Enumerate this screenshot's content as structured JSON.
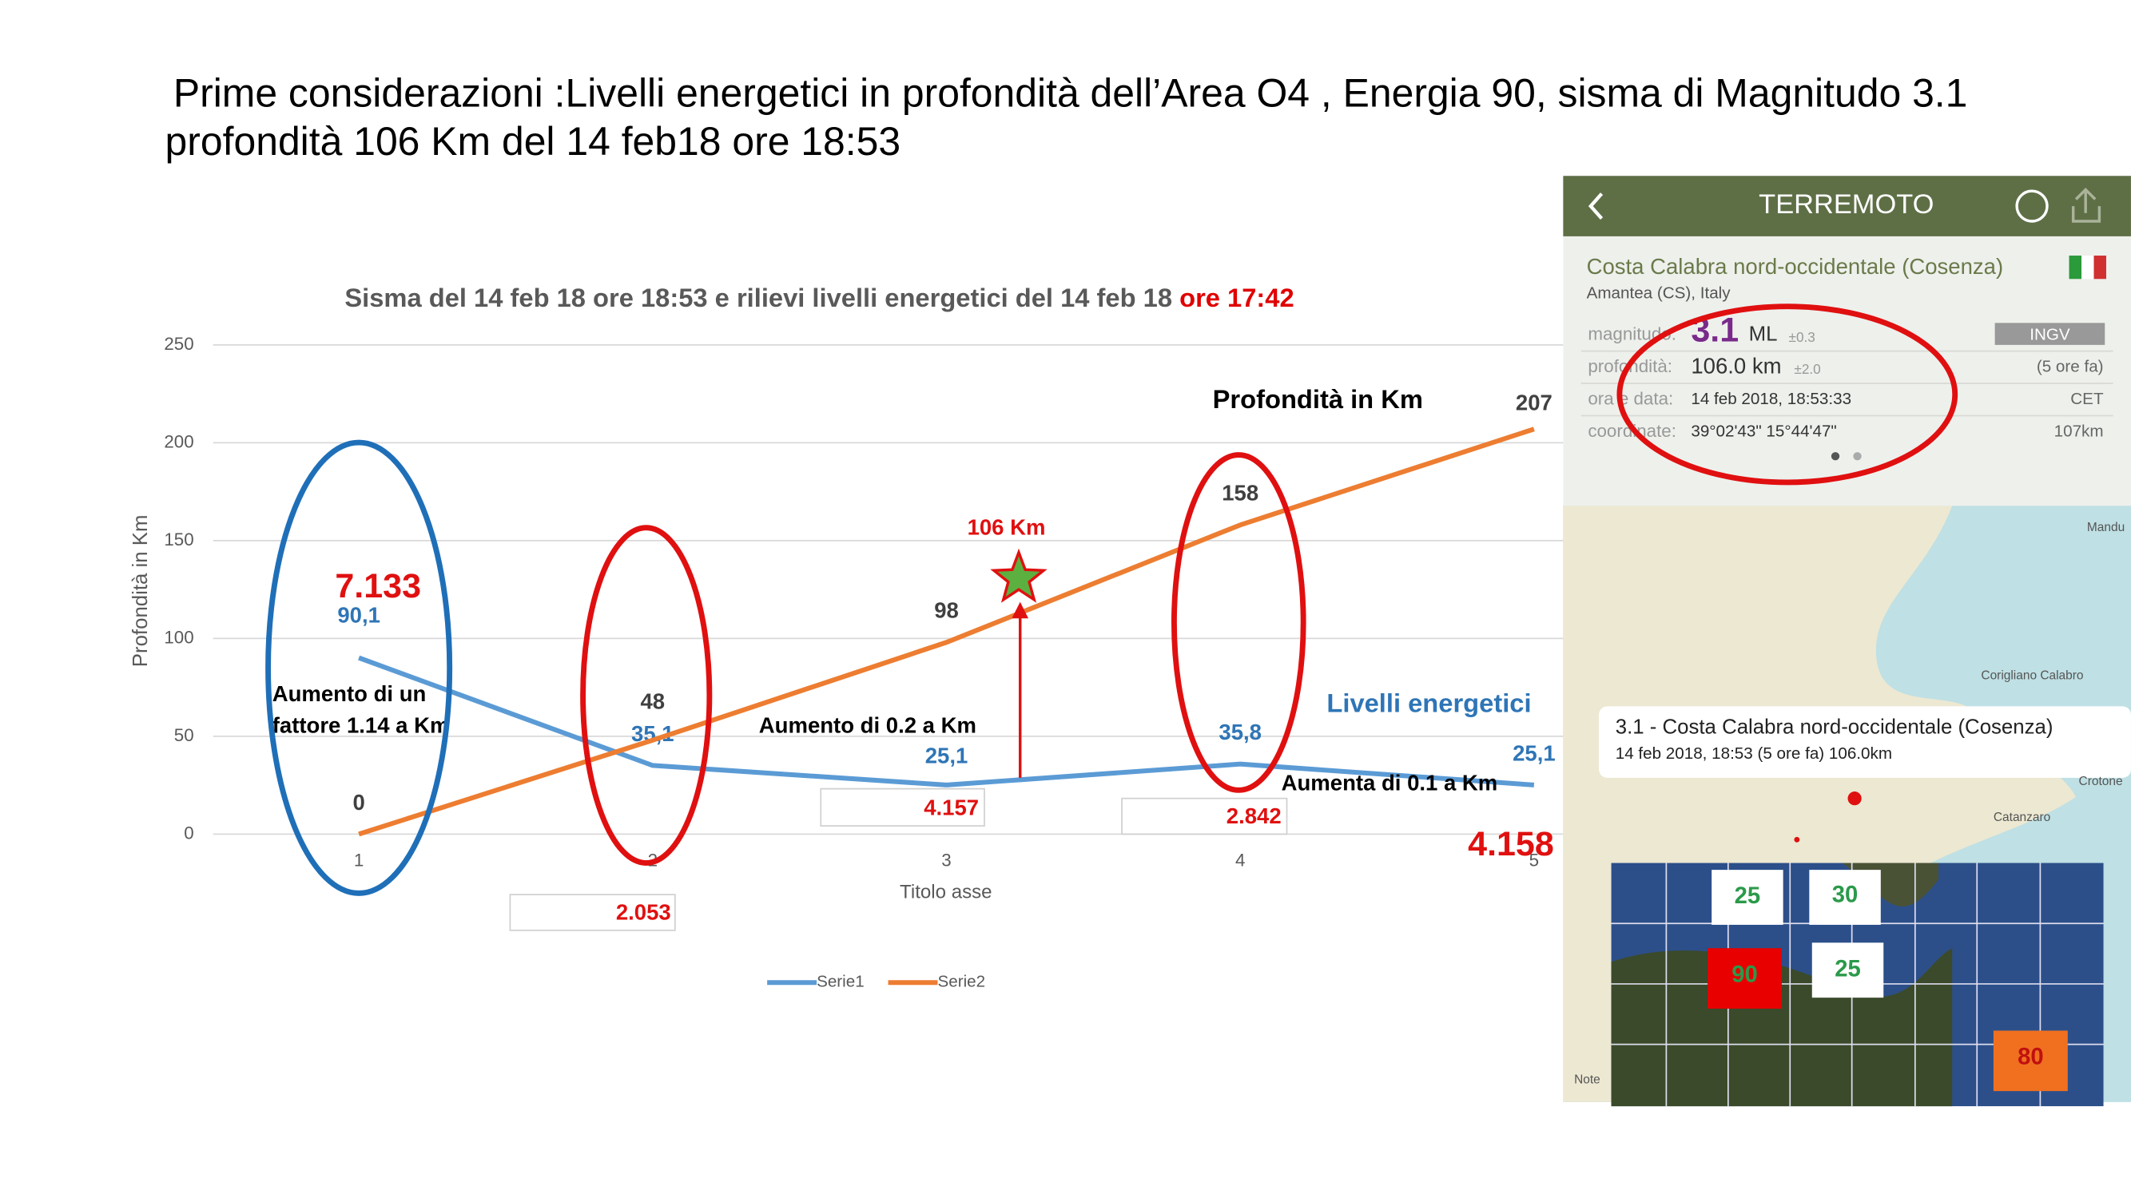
{
  "title_lines": [
    " Prime considerazioni :Livelli energetici in profondità dell’Area O4 , Energia 90, sisma di Magnitudo 3.1",
    "profondità 106 Km del 14 feb18 ore 18:53"
  ],
  "chart_data": {
    "type": "line",
    "title_parts": [
      "Sisma del 14 feb 18 ore 18:53 e rilievi livelli energetici del 14 feb 18 ",
      "ore 17:42"
    ],
    "x_label": "Titolo asse",
    "y_label": "Profondità in Km",
    "categories": [
      "1",
      "2",
      "3",
      "4",
      "5"
    ],
    "series": [
      {
        "name": "Serie1",
        "color": "#5b9bd5",
        "values": [
          90.1,
          35.1,
          25.1,
          35.8,
          25.1
        ],
        "value_labels": [
          "90,1",
          "35,1",
          "25,1",
          "35,8",
          "25,1"
        ]
      },
      {
        "name": "Serie2",
        "color": "#ed7d31",
        "values": [
          0,
          48,
          98,
          158,
          207
        ]
      }
    ],
    "ylim": [
      0,
      250
    ],
    "yticks": [
      0,
      50,
      100,
      150,
      200,
      250
    ],
    "grid": true,
    "legend": "bottom"
  },
  "annotations": {
    "energy_first": "7.133",
    "increase_1": [
      "Aumento di un",
      "fattore 1.14 a Km"
    ],
    "quake_depth": "106 Km",
    "increase_2": "Aumento di 0.2 a Km",
    "box_3": "4.157",
    "box_2": "2.053",
    "box_4": "2.842",
    "increase_3": "Aumenta di 0.1 a Km",
    "energy_last": "4.158",
    "depth_series": "Profondità in Km",
    "energy_series": "Livelli energetici"
  },
  "app": {
    "header": "TERREMOTO",
    "place": "Costa Calabra nord-occidentale (Cosenza)",
    "town": "Amantea (CS), Italy",
    "rows": [
      {
        "label": "magnitudo:",
        "value": "3.1",
        "unit": "ML",
        "err": "±0.3",
        "right": "INGV"
      },
      {
        "label": "profondità:",
        "value": "106.0 km",
        "err": "±2.0",
        "right": "(5 ore fa)"
      },
      {
        "label": "ora e data:",
        "value": "14 feb 2018, 18:53:33",
        "right": "CET"
      },
      {
        "label": "coordinate:",
        "value": "39°02'43\"  15°44'47\"",
        "right": "107km"
      }
    ],
    "callout": [
      "3.1 - Costa Calabra nord-occidentale (Cosenza)",
      "14 feb 2018, 18:53 (5 ore fa) 106.0km"
    ],
    "map_labels": [
      "Mandu",
      "Corigliano Calabro",
      "Crotone",
      "Catanzaro",
      "Note"
    ],
    "grid_cells": [
      "25",
      "30",
      "90",
      "25",
      "80"
    ]
  }
}
